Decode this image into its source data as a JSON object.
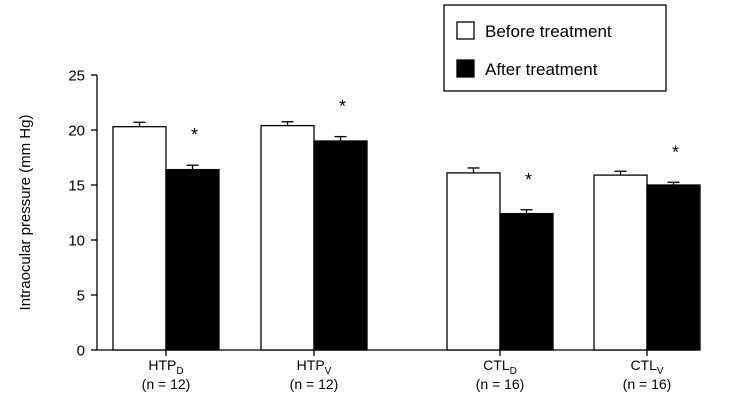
{
  "chart_data": {
    "type": "bar",
    "ylabel": "Intraocular pressure (mm Hg)",
    "ylim": [
      0,
      25
    ],
    "yticks": [
      0,
      5,
      10,
      15,
      20,
      25
    ],
    "legend_position": "top-right",
    "categories": [
      {
        "base": "HTP",
        "sub": "D",
        "n": "(n = 12)"
      },
      {
        "base": "HTP",
        "sub": "V",
        "n": "(n = 12)"
      },
      {
        "base": "CTL",
        "sub": "D",
        "n": "(n = 16)"
      },
      {
        "base": "CTL",
        "sub": "V",
        "n": "(n = 16)"
      }
    ],
    "series": [
      {
        "name": "Before treatment",
        "color": "#ffffff",
        "values": [
          20.3,
          20.4,
          16.1,
          15.9
        ],
        "errors": [
          0.4,
          0.35,
          0.45,
          0.35
        ]
      },
      {
        "name": "After treatment",
        "color": "#000000",
        "values": [
          16.4,
          19.0,
          12.4,
          15.0
        ],
        "errors": [
          0.4,
          0.4,
          0.35,
          0.25
        ]
      }
    ],
    "annotations": [
      "*",
      "*",
      "*",
      "*"
    ]
  }
}
